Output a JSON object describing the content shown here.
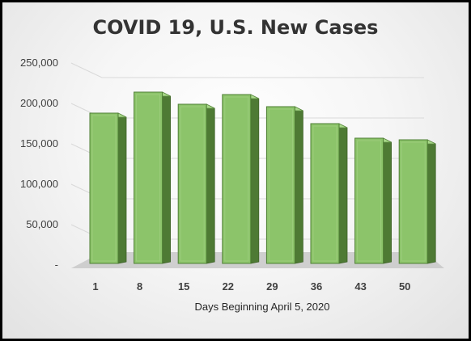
{
  "chart_data": {
    "type": "bar",
    "title": "COVID 19, U.S. New Cases",
    "xlabel": "Days Beginning April 5, 2020",
    "ylabel": "",
    "categories": [
      "1",
      "8",
      "15",
      "22",
      "29",
      "36",
      "43",
      "50"
    ],
    "values": [
      188000,
      214000,
      199000,
      211000,
      196000,
      175000,
      157000,
      155000
    ],
    "ylim": [
      0,
      250000
    ],
    "yticks": [
      0,
      50000,
      100000,
      150000,
      200000,
      250000
    ],
    "ytick_labels": [
      "-",
      "50,000",
      "100,000",
      "150,000",
      "200,000",
      "250,000"
    ],
    "grid": true,
    "legend": "none",
    "colors": {
      "bar_front": "#8cc46a",
      "bar_side": "#4e7a34",
      "bar_top": "#a9d98a",
      "floor": "#c8c8c8"
    }
  }
}
